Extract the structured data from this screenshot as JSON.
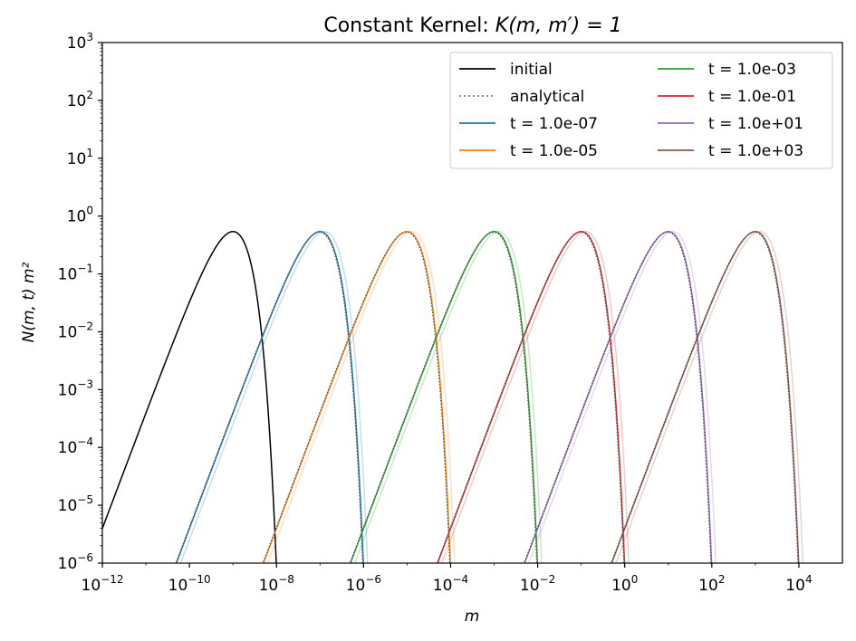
{
  "chart_data": {
    "type": "line",
    "title_prefix": "Constant Kernel: ",
    "title_math": "K(m, m′) = 1",
    "xlabel": "m",
    "ylabel": "N(m, t) m²",
    "x_scale": "log",
    "y_scale": "log",
    "xlim": [
      1e-12,
      100000.0
    ],
    "ylim": [
      1e-06,
      1000.0
    ],
    "grid": false,
    "legend_position": "top-right",
    "legend_columns": 2,
    "x_ticks": [
      {
        "base": "10",
        "exp": "−12",
        "value": 1e-12
      },
      {
        "base": "10",
        "exp": "−10",
        "value": 1e-10
      },
      {
        "base": "10",
        "exp": "−8",
        "value": 1e-08
      },
      {
        "base": "10",
        "exp": "−6",
        "value": 1e-06
      },
      {
        "base": "10",
        "exp": "−4",
        "value": 0.0001
      },
      {
        "base": "10",
        "exp": "−2",
        "value": 0.01
      },
      {
        "base": "10",
        "exp": "0",
        "value": 1
      },
      {
        "base": "10",
        "exp": "2",
        "value": 100
      },
      {
        "base": "10",
        "exp": "4",
        "value": 10000
      }
    ],
    "y_ticks": [
      {
        "base": "10",
        "exp": "−6",
        "value": 1e-06
      },
      {
        "base": "10",
        "exp": "−5",
        "value": 1e-05
      },
      {
        "base": "10",
        "exp": "−4",
        "value": 0.0001
      },
      {
        "base": "10",
        "exp": "−3",
        "value": 0.001
      },
      {
        "base": "10",
        "exp": "−2",
        "value": 0.01
      },
      {
        "base": "10",
        "exp": "−1",
        "value": 0.1
      },
      {
        "base": "10",
        "exp": "0",
        "value": 1
      },
      {
        "base": "10",
        "exp": "1",
        "value": 10
      },
      {
        "base": "10",
        "exp": "2",
        "value": 100
      },
      {
        "base": "10",
        "exp": "3",
        "value": 1000
      }
    ],
    "legend": [
      {
        "label": "initial",
        "color": "#000000",
        "style": "solid"
      },
      {
        "label": "analytical",
        "color": "#7f7f7f",
        "style": "dotted"
      },
      {
        "label": "t = 1.0e-07",
        "color": "#1f77b4",
        "style": "solid"
      },
      {
        "label": "t = 1.0e-05",
        "color": "#ff7f0e",
        "style": "solid"
      },
      {
        "label": "t = 1.0e-03",
        "color": "#2ca02c",
        "style": "solid"
      },
      {
        "label": "t = 1.0e-01",
        "color": "#d62728",
        "style": "solid"
      },
      {
        "label": "t = 1.0e+01",
        "color": "#9467bd",
        "style": "solid"
      },
      {
        "label": "t = 1.0e+03",
        "color": "#8c564b",
        "style": "solid"
      }
    ],
    "series": [
      {
        "name": "initial",
        "color": "#000000",
        "peak_m": 1e-09,
        "peak_value": 0.54
      },
      {
        "name": "t = 1.0e-07",
        "color": "#1f77b4",
        "peak_m": 1e-07,
        "peak_value": 0.54
      },
      {
        "name": "t = 1.0e-05",
        "color": "#ff7f0e",
        "peak_m": 1e-05,
        "peak_value": 0.54
      },
      {
        "name": "t = 1.0e-03",
        "color": "#2ca02c",
        "peak_m": 0.001,
        "peak_value": 0.54
      },
      {
        "name": "t = 1.0e-01",
        "color": "#d62728",
        "peak_m": 0.1,
        "peak_value": 0.54
      },
      {
        "name": "t = 1.0e+01",
        "color": "#9467bd",
        "peak_m": 10,
        "peak_value": 0.54
      },
      {
        "name": "t = 1.0e+03",
        "color": "#8c564b",
        "peak_m": 1000,
        "peak_value": 0.54
      }
    ]
  }
}
